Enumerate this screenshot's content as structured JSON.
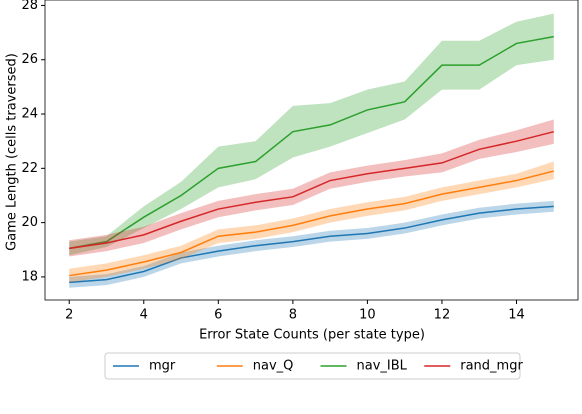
{
  "chart_data": {
    "type": "line",
    "x_label": "Error State Counts (per state type)",
    "y_label": "Game Length (cells traversed)",
    "x": [
      2,
      3,
      4,
      5,
      6,
      7,
      8,
      9,
      10,
      11,
      12,
      13,
      14,
      15
    ],
    "xlim": [
      1.35,
      15.65
    ],
    "xticks": [
      2,
      4,
      6,
      8,
      10,
      12,
      14
    ],
    "ylim": [
      17.15,
      28.2
    ],
    "yticks": [
      18,
      20,
      22,
      24,
      26,
      28
    ],
    "legend": "bottom",
    "series": [
      {
        "name": "mgr",
        "color": "#1f77b4",
        "values": [
          17.8,
          17.9,
          18.2,
          18.7,
          18.95,
          19.15,
          19.3,
          19.5,
          19.6,
          19.8,
          20.1,
          20.35,
          20.5,
          20.6
        ],
        "lower": [
          17.6,
          17.7,
          18.0,
          18.5,
          18.75,
          18.95,
          19.1,
          19.3,
          19.4,
          19.6,
          19.9,
          20.15,
          20.3,
          20.4
        ],
        "upper": [
          18.0,
          18.1,
          18.4,
          18.9,
          19.15,
          19.35,
          19.5,
          19.7,
          19.8,
          20.0,
          20.3,
          20.55,
          20.7,
          20.8
        ]
      },
      {
        "name": "nav_Q",
        "color": "#ff7f0e",
        "values": [
          18.05,
          18.25,
          18.55,
          18.9,
          19.5,
          19.65,
          19.9,
          20.25,
          20.5,
          20.7,
          21.05,
          21.3,
          21.55,
          21.9
        ],
        "lower": [
          17.8,
          18.0,
          18.3,
          18.65,
          19.25,
          19.4,
          19.65,
          20.0,
          20.25,
          20.45,
          20.8,
          21.05,
          21.3,
          21.6
        ],
        "upper": [
          18.3,
          18.5,
          18.8,
          19.15,
          19.75,
          19.9,
          20.15,
          20.5,
          20.75,
          20.95,
          21.3,
          21.55,
          21.8,
          22.25
        ]
      },
      {
        "name": "nav_IBL",
        "color": "#2ca02c",
        "values": [
          19.05,
          19.3,
          20.2,
          21.0,
          22.0,
          22.25,
          23.35,
          23.6,
          24.15,
          24.45,
          25.8,
          25.8,
          26.6,
          26.85
        ],
        "lower": [
          18.8,
          19.1,
          19.8,
          20.5,
          21.3,
          21.6,
          22.4,
          22.8,
          23.3,
          23.8,
          24.9,
          24.9,
          25.8,
          26.0
        ],
        "upper": [
          19.3,
          19.5,
          20.6,
          21.5,
          22.8,
          23.0,
          24.3,
          24.4,
          24.9,
          25.2,
          26.7,
          26.7,
          27.4,
          27.7
        ]
      },
      {
        "name": "rand_mgr",
        "color": "#d62728",
        "values": [
          19.05,
          19.25,
          19.55,
          20.05,
          20.5,
          20.75,
          20.95,
          21.55,
          21.8,
          22.0,
          22.2,
          22.7,
          23.0,
          23.35
        ],
        "lower": [
          18.75,
          18.95,
          19.25,
          19.75,
          20.2,
          20.45,
          20.65,
          21.25,
          21.5,
          21.7,
          21.85,
          22.35,
          22.6,
          22.9
        ],
        "upper": [
          19.35,
          19.55,
          19.85,
          20.35,
          20.8,
          21.05,
          21.25,
          21.85,
          22.1,
          22.3,
          22.55,
          23.05,
          23.4,
          23.8
        ]
      }
    ]
  }
}
